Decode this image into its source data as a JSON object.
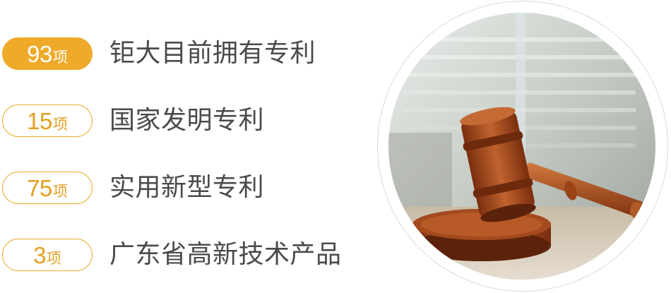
{
  "stats": [
    {
      "number": "93",
      "unit": "项",
      "label": "钜大目前拥有专利",
      "highlighted": true
    },
    {
      "number": "15",
      "unit": "项",
      "label": "国家发明专利",
      "highlighted": false
    },
    {
      "number": "75",
      "unit": "项",
      "label": "实用新型专利",
      "highlighted": false
    },
    {
      "number": "3",
      "unit": "项",
      "label": "广东省高新技术产品",
      "highlighted": false
    }
  ],
  "image": {
    "subject": "gavel-on-sound-block"
  },
  "colors": {
    "accent": "#eeaa28",
    "label_text": "#4a4a4a",
    "circle_border": "#d9d9d9"
  }
}
